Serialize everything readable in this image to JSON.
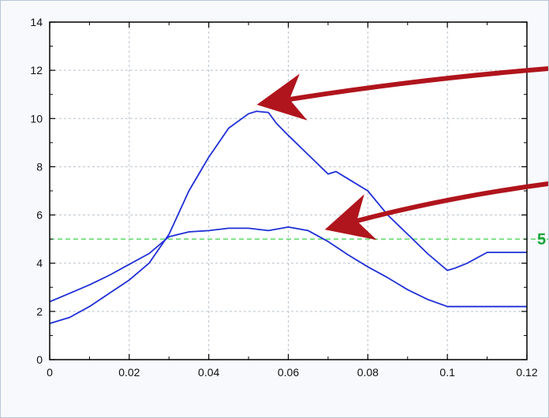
{
  "chart_data": {
    "type": "line",
    "title": "",
    "xlabel": "",
    "ylabel": "",
    "xlim": [
      0,
      0.12
    ],
    "ylim": [
      0,
      14
    ],
    "grid": true,
    "x_ticks": [
      0,
      0.02,
      0.04,
      0.06,
      0.08,
      0.1,
      0.12
    ],
    "x_tick_labels": [
      "0",
      "0.02",
      "0.04",
      "0.06",
      "0.08",
      "0.1",
      "0.12"
    ],
    "y_ticks": [
      0,
      2,
      4,
      6,
      8,
      10,
      12,
      14
    ],
    "y_tick_labels": [
      "0",
      "2",
      "4",
      "6",
      "8",
      "10",
      "12",
      "14"
    ],
    "series": [
      {
        "color": "#1f2fd6",
        "x": [
          0,
          0.005,
          0.01,
          0.015,
          0.02,
          0.025,
          0.03,
          0.035,
          0.04,
          0.045,
          0.05,
          0.052,
          0.055,
          0.057,
          0.06,
          0.065,
          0.07,
          0.072,
          0.075,
          0.08,
          0.085,
          0.09,
          0.095,
          0.1,
          0.102,
          0.105,
          0.11,
          0.12
        ],
        "y": [
          1.5,
          1.75,
          2.2,
          2.75,
          3.3,
          4.0,
          5.2,
          7.0,
          8.4,
          9.6,
          10.2,
          10.3,
          10.25,
          9.8,
          9.3,
          8.5,
          7.7,
          7.8,
          7.5,
          7.0,
          6.0,
          5.2,
          4.4,
          3.7,
          3.8,
          4.0,
          4.45,
          4.45
        ]
      },
      {
        "color": "#1f2fd6",
        "x": [
          0,
          0.005,
          0.01,
          0.015,
          0.02,
          0.025,
          0.03,
          0.035,
          0.04,
          0.045,
          0.05,
          0.055,
          0.06,
          0.065,
          0.07,
          0.075,
          0.08,
          0.085,
          0.09,
          0.095,
          0.1,
          0.105,
          0.11,
          0.12
        ],
        "y": [
          2.4,
          2.75,
          3.1,
          3.5,
          3.95,
          4.4,
          5.1,
          5.3,
          5.35,
          5.45,
          5.45,
          5.35,
          5.5,
          5.35,
          4.9,
          4.35,
          3.85,
          3.4,
          2.9,
          2.5,
          2.2,
          2.2,
          2.2,
          2.2
        ]
      }
    ],
    "threshold": {
      "value": 5,
      "color": "#3ccf4a",
      "label": "5"
    },
    "annotations": [
      {
        "type": "arrow",
        "color": "#b0141c",
        "target": {
          "x": 0.054,
          "y": 10.7
        }
      },
      {
        "type": "arrow",
        "color": "#b0141c",
        "target": {
          "x": 0.071,
          "y": 5.6
        }
      }
    ]
  }
}
